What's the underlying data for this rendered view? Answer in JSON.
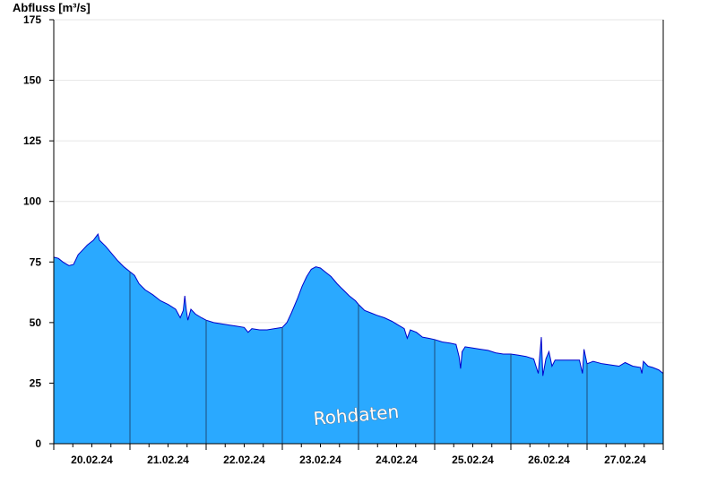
{
  "chart_data": {
    "type": "area",
    "title": "",
    "ylabel": "Abfluss [m³/s]",
    "xlabel": "",
    "ylim": [
      0,
      175
    ],
    "yticks": [
      0,
      25,
      50,
      75,
      100,
      125,
      150,
      175
    ],
    "xlim_days": [
      0,
      8
    ],
    "day_labels": [
      "20.02.24",
      "21.02.24",
      "22.02.24",
      "23.02.24",
      "24.02.24",
      "25.02.24",
      "26.02.24",
      "27.02.24"
    ],
    "watermark": "Rohdaten",
    "grid": true,
    "colors": {
      "fill": "#2aa9ff",
      "line": "#0000cc",
      "grid": "#e6e6e6",
      "day_divider": "#1f4a78"
    },
    "series": [
      {
        "points": [
          [
            0.0,
            77.0
          ],
          [
            0.06,
            76.5
          ],
          [
            0.12,
            75.0
          ],
          [
            0.2,
            73.5
          ],
          [
            0.26,
            74.0
          ],
          [
            0.32,
            78.0
          ],
          [
            0.38,
            80.0
          ],
          [
            0.44,
            82.0
          ],
          [
            0.52,
            84.0
          ],
          [
            0.58,
            86.5
          ],
          [
            0.6,
            84.0
          ],
          [
            0.68,
            81.5
          ],
          [
            0.76,
            78.5
          ],
          [
            0.84,
            75.5
          ],
          [
            0.92,
            73.0
          ],
          [
            1.0,
            71.0
          ],
          [
            1.06,
            69.5
          ],
          [
            1.12,
            66.0
          ],
          [
            1.2,
            63.5
          ],
          [
            1.3,
            61.5
          ],
          [
            1.4,
            59.0
          ],
          [
            1.5,
            57.5
          ],
          [
            1.6,
            55.5
          ],
          [
            1.66,
            52.0
          ],
          [
            1.7,
            55.0
          ],
          [
            1.72,
            61.0
          ],
          [
            1.74,
            55.0
          ],
          [
            1.76,
            51.0
          ],
          [
            1.8,
            55.5
          ],
          [
            1.86,
            53.5
          ],
          [
            1.94,
            52.0
          ],
          [
            2.0,
            51.0
          ],
          [
            2.1,
            50.0
          ],
          [
            2.2,
            49.5
          ],
          [
            2.3,
            49.0
          ],
          [
            2.4,
            48.5
          ],
          [
            2.5,
            48.0
          ],
          [
            2.55,
            46.0
          ],
          [
            2.6,
            47.5
          ],
          [
            2.7,
            47.0
          ],
          [
            2.8,
            47.0
          ],
          [
            2.9,
            47.5
          ],
          [
            3.0,
            48.0
          ],
          [
            3.06,
            50.0
          ],
          [
            3.12,
            54.0
          ],
          [
            3.2,
            60.0
          ],
          [
            3.26,
            65.0
          ],
          [
            3.32,
            69.0
          ],
          [
            3.38,
            72.0
          ],
          [
            3.44,
            73.0
          ],
          [
            3.5,
            72.5
          ],
          [
            3.56,
            71.0
          ],
          [
            3.64,
            69.0
          ],
          [
            3.72,
            66.0
          ],
          [
            3.8,
            63.5
          ],
          [
            3.88,
            61.0
          ],
          [
            3.96,
            59.0
          ],
          [
            4.0,
            57.5
          ],
          [
            4.08,
            55.0
          ],
          [
            4.16,
            54.0
          ],
          [
            4.24,
            53.0
          ],
          [
            4.34,
            52.0
          ],
          [
            4.44,
            50.5
          ],
          [
            4.52,
            49.0
          ],
          [
            4.6,
            47.5
          ],
          [
            4.64,
            43.5
          ],
          [
            4.68,
            47.0
          ],
          [
            4.76,
            46.0
          ],
          [
            4.84,
            44.0
          ],
          [
            4.92,
            43.5
          ],
          [
            5.0,
            43.0
          ],
          [
            5.1,
            42.0
          ],
          [
            5.2,
            41.5
          ],
          [
            5.28,
            41.0
          ],
          [
            5.32,
            36.0
          ],
          [
            5.34,
            31.0
          ],
          [
            5.36,
            38.0
          ],
          [
            5.4,
            40.0
          ],
          [
            5.5,
            39.5
          ],
          [
            5.6,
            39.0
          ],
          [
            5.7,
            38.5
          ],
          [
            5.8,
            37.5
          ],
          [
            5.9,
            37.0
          ],
          [
            6.0,
            37.0
          ],
          [
            6.1,
            36.5
          ],
          [
            6.2,
            36.0
          ],
          [
            6.3,
            35.0
          ],
          [
            6.36,
            29.0
          ],
          [
            6.4,
            44.0
          ],
          [
            6.42,
            28.0
          ],
          [
            6.46,
            35.0
          ],
          [
            6.5,
            38.0
          ],
          [
            6.54,
            32.0
          ],
          [
            6.58,
            34.5
          ],
          [
            6.7,
            34.5
          ],
          [
            6.8,
            34.5
          ],
          [
            6.9,
            34.5
          ],
          [
            6.94,
            29.0
          ],
          [
            6.96,
            39.0
          ],
          [
            7.0,
            33.0
          ],
          [
            7.08,
            34.0
          ],
          [
            7.2,
            33.0
          ],
          [
            7.32,
            32.5
          ],
          [
            7.42,
            32.0
          ],
          [
            7.5,
            33.5
          ],
          [
            7.6,
            32.0
          ],
          [
            7.7,
            31.5
          ],
          [
            7.72,
            29.0
          ],
          [
            7.74,
            34.0
          ],
          [
            7.8,
            32.0
          ],
          [
            7.86,
            31.5
          ],
          [
            7.94,
            30.5
          ],
          [
            8.0,
            29.0
          ]
        ]
      }
    ]
  }
}
